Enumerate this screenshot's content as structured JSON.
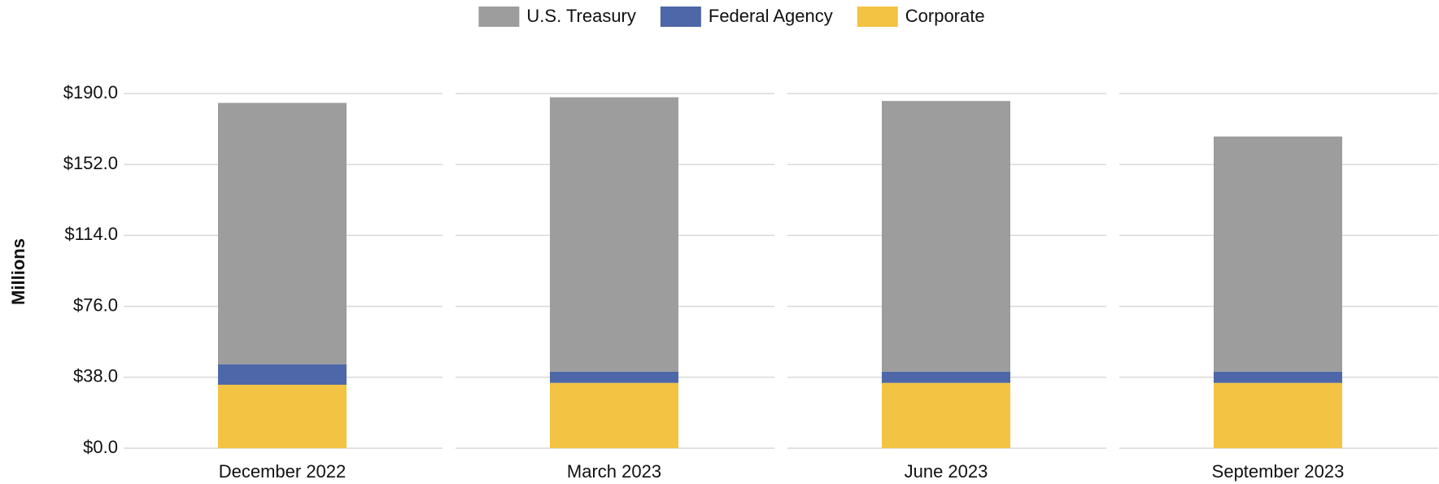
{
  "chart_data": {
    "type": "stacked_bar",
    "y_label": "Millions",
    "categories": [
      "December 2022",
      "March 2023",
      "June 2023",
      "September 2023"
    ],
    "series": [
      {
        "name": "U.S. Treasury",
        "color": "#9d9d9d",
        "values": [
          140,
          147,
          145,
          126
        ]
      },
      {
        "name": "Federal Agency",
        "color": "#4e67a8",
        "values": [
          11,
          6,
          6,
          6
        ]
      },
      {
        "name": "Corporate",
        "color": "#f3c343",
        "values": [
          34,
          35,
          35,
          35
        ]
      }
    ],
    "stack_order": "bottom_to_top_reverse",
    "ylim": [
      0,
      190
    ],
    "yticks": [
      {
        "value": 0,
        "label": "$0.0"
      },
      {
        "value": 38,
        "label": "$38.0"
      },
      {
        "value": 76,
        "label": "$76.0"
      },
      {
        "value": 114,
        "label": "$114.0"
      },
      {
        "value": 152,
        "label": "$152.0"
      },
      {
        "value": 190,
        "label": "$190.0"
      }
    ],
    "grid": true,
    "legend": "top"
  }
}
